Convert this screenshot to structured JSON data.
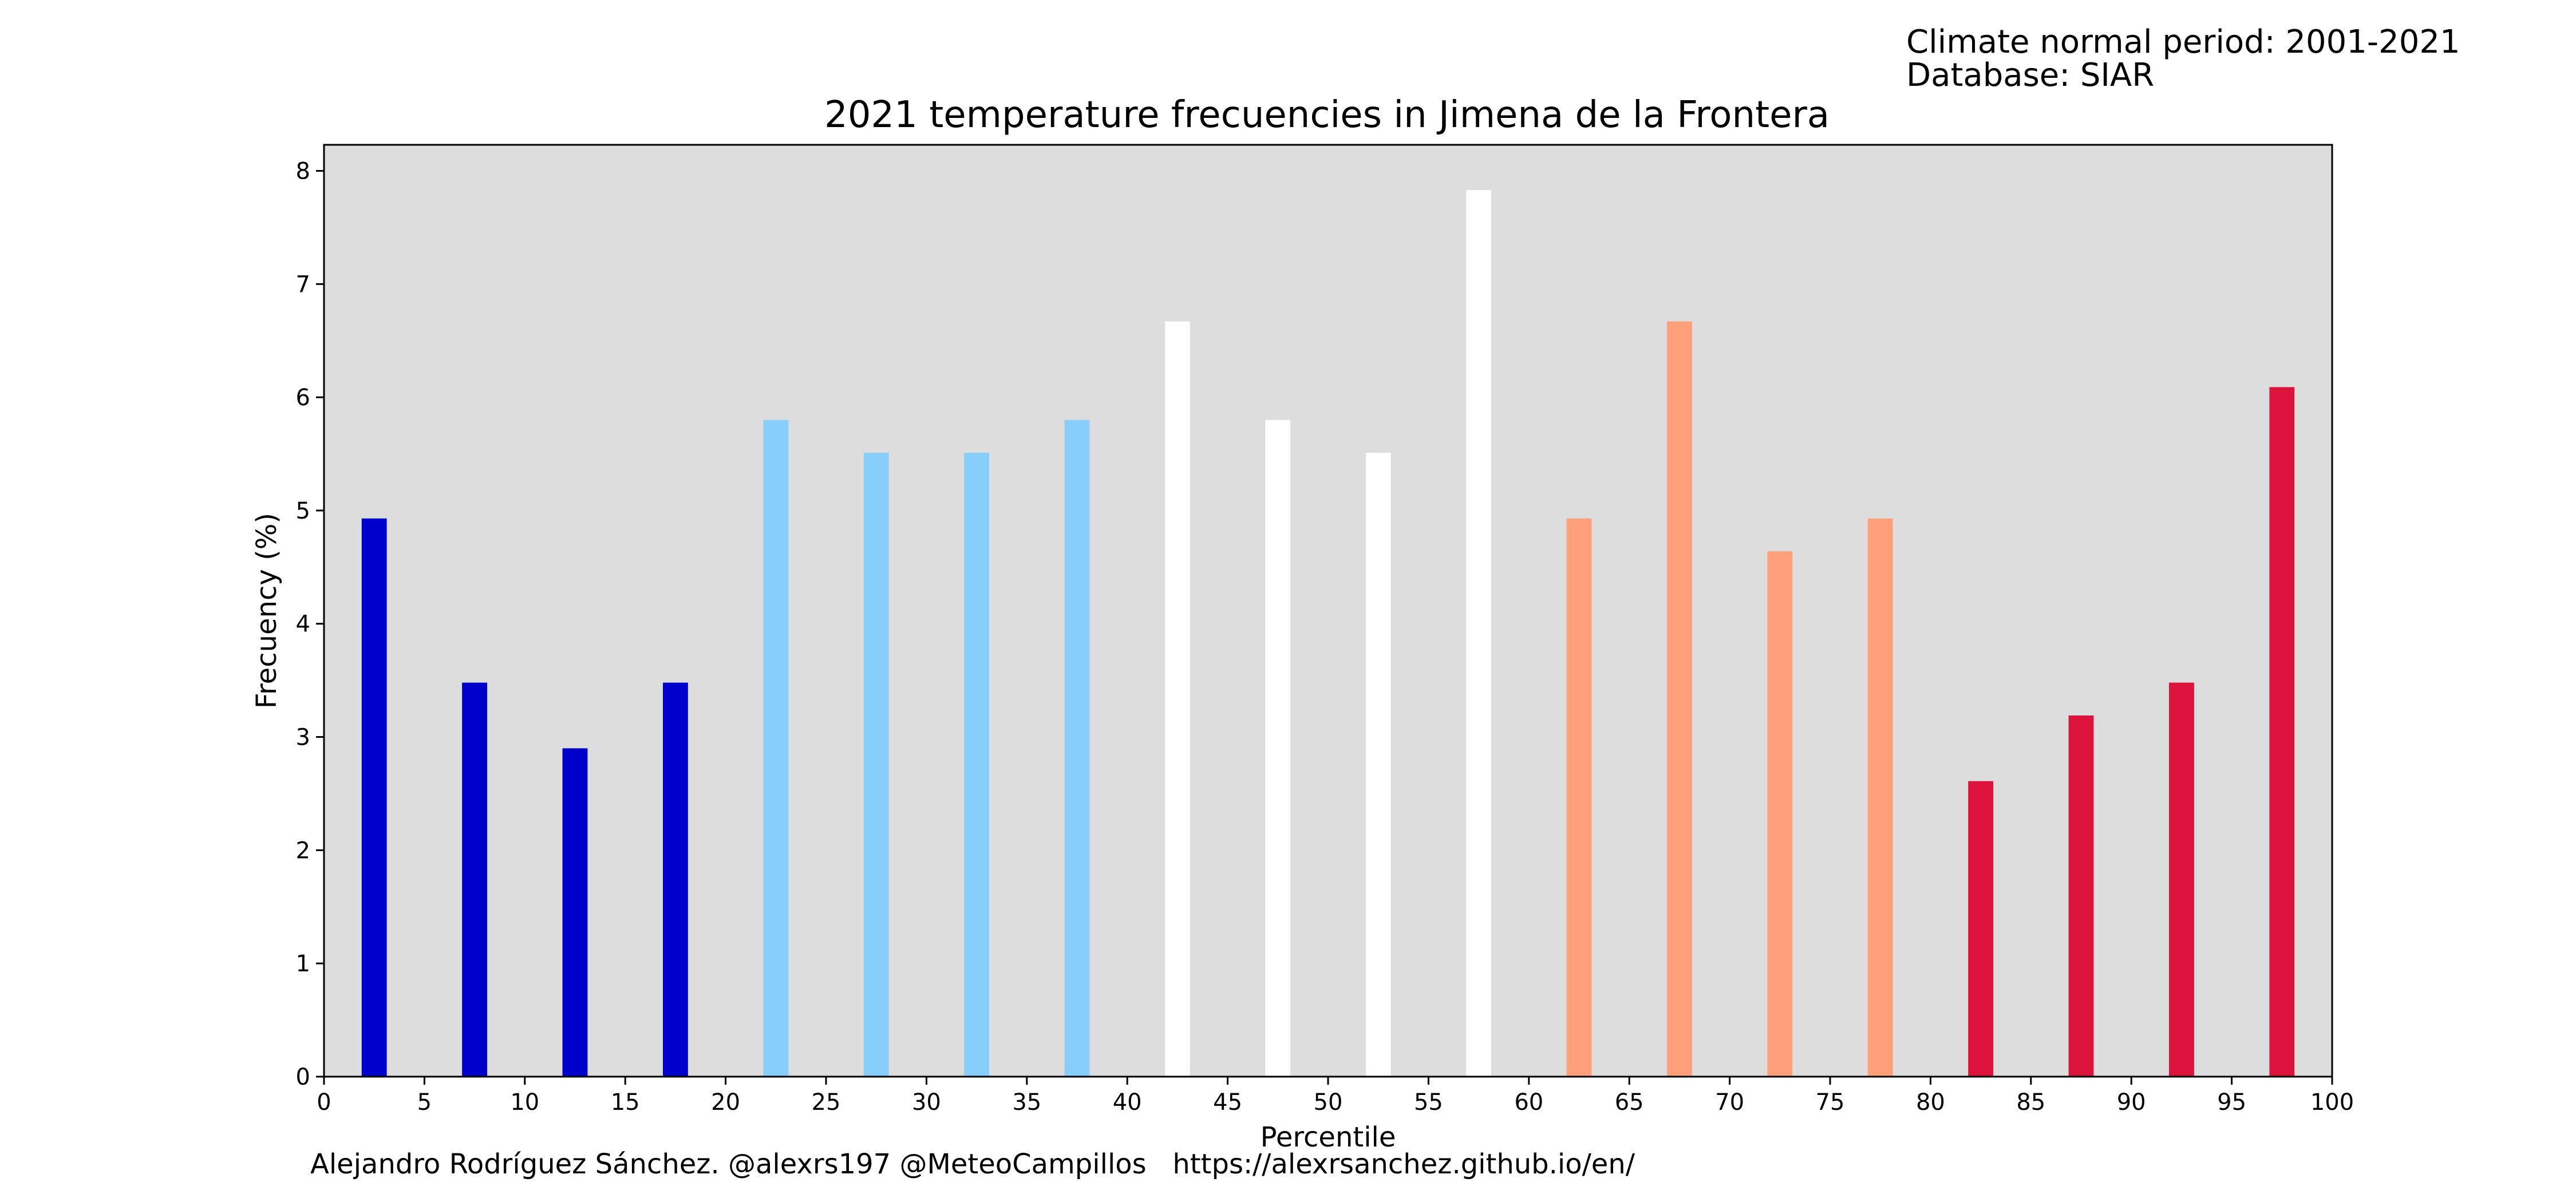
{
  "header": {
    "normal_period": "Climate normal period: 2001-2021",
    "database": "Database: SIAR"
  },
  "footer": {
    "credit": "Alejandro Rodríguez Sánchez. @alexrs197 @MeteoCampillos   https://alexrsanchez.github.io/en/"
  },
  "chart_data": {
    "type": "bar",
    "title": "2021 temperature frecuencies in Jimena de la Frontera",
    "xlabel": "Percentile",
    "ylabel": "Frecuency (%)",
    "xlim": [
      0,
      100
    ],
    "ylim": [
      0,
      8.23
    ],
    "xticks": [
      0,
      5,
      10,
      15,
      20,
      25,
      30,
      35,
      40,
      45,
      50,
      55,
      60,
      65,
      70,
      75,
      80,
      85,
      90,
      95,
      100
    ],
    "yticks": [
      0,
      1,
      2,
      3,
      4,
      5,
      6,
      7,
      8
    ],
    "background": "#dddddd",
    "bar_width": 1.25,
    "x": [
      2.5,
      7.5,
      12.5,
      17.5,
      22.5,
      27.5,
      32.5,
      37.5,
      42.5,
      47.5,
      52.5,
      57.5,
      62.5,
      67.5,
      72.5,
      77.5,
      82.5,
      87.5,
      92.5,
      97.5
    ],
    "values": [
      4.93,
      3.48,
      2.9,
      3.48,
      5.8,
      5.51,
      5.51,
      5.8,
      6.67,
      5.8,
      5.51,
      7.83,
      4.93,
      6.67,
      4.64,
      4.93,
      2.61,
      3.19,
      3.48,
      6.09
    ],
    "colors": [
      "#0000cd",
      "#0000cd",
      "#0000cd",
      "#0000cd",
      "#87cefa",
      "#87cefa",
      "#87cefa",
      "#87cefa",
      "#ffffff",
      "#ffffff",
      "#ffffff",
      "#ffffff",
      "#ffa07a",
      "#ffa07a",
      "#ffa07a",
      "#ffa07a",
      "#dc143c",
      "#dc143c",
      "#dc143c",
      "#dc143c"
    ]
  }
}
